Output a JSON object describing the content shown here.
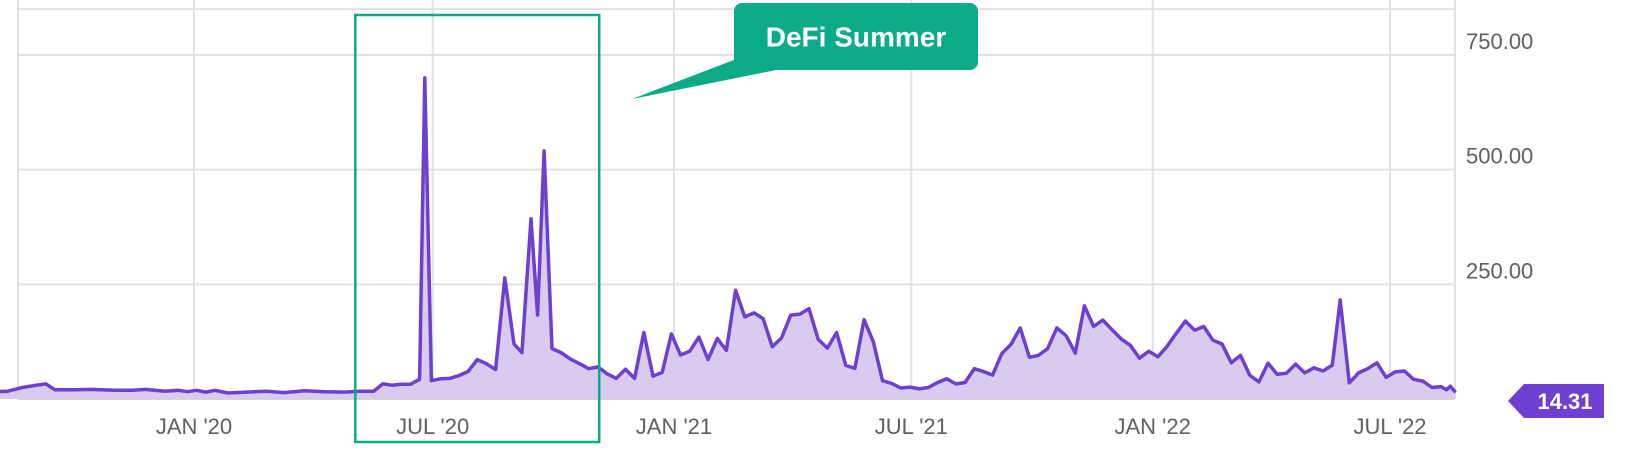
{
  "chart_data": {
    "type": "area",
    "annotation": "DeFi Summer",
    "last_value": "14.31",
    "x_tick_labels": [
      "JAN '20",
      "JUL '20",
      "JAN '21",
      "JUL '21",
      "JAN '22",
      "JUL '22"
    ],
    "y_tick_labels": [
      "250.00",
      "500.00",
      "750.00"
    ],
    "x_range": [
      "2019-08-01",
      "2022-08-20"
    ],
    "ylim": [
      0,
      850
    ],
    "highlight_range": [
      "2020-05-03",
      "2020-11-05"
    ],
    "colors": {
      "line": "#6f3fcf",
      "fill": "#d9cbef",
      "callout": "#0bab8a",
      "last_value_tag": "#6f3fcf"
    },
    "series": [
      {
        "points": [
          [
            "2019-08-01",
            16
          ],
          [
            "2019-08-12",
            17
          ],
          [
            "2019-08-23",
            25
          ],
          [
            "2019-09-03",
            30
          ],
          [
            "2019-09-10",
            33
          ],
          [
            "2019-09-17",
            20
          ],
          [
            "2019-10-01",
            20
          ],
          [
            "2019-10-15",
            21
          ],
          [
            "2019-11-01",
            19
          ],
          [
            "2019-11-15",
            19
          ],
          [
            "2019-11-25",
            21
          ],
          [
            "2019-12-10",
            17
          ],
          [
            "2019-12-20",
            19
          ],
          [
            "2019-12-27",
            16
          ],
          [
            "2020-01-03",
            19
          ],
          [
            "2020-01-10",
            15
          ],
          [
            "2020-01-17",
            19
          ],
          [
            "2020-01-27",
            13
          ],
          [
            "2020-02-10",
            15
          ],
          [
            "2020-02-25",
            17
          ],
          [
            "2020-03-10",
            14
          ],
          [
            "2020-03-25",
            18
          ],
          [
            "2020-04-10",
            16
          ],
          [
            "2020-04-25",
            15
          ],
          [
            "2020-05-07",
            17
          ],
          [
            "2020-05-17",
            17
          ],
          [
            "2020-05-24",
            33
          ],
          [
            "2020-05-31",
            30
          ],
          [
            "2020-06-07",
            32
          ],
          [
            "2020-06-14",
            32
          ],
          [
            "2020-06-21",
            43
          ],
          [
            "2020-06-25",
            700
          ],
          [
            "2020-06-30",
            40
          ],
          [
            "2020-07-07",
            44
          ],
          [
            "2020-07-14",
            45
          ],
          [
            "2020-07-21",
            51
          ],
          [
            "2020-07-28",
            60
          ],
          [
            "2020-08-04",
            86
          ],
          [
            "2020-08-11",
            77
          ],
          [
            "2020-08-18",
            64
          ],
          [
            "2020-08-25",
            264
          ],
          [
            "2020-09-01",
            120
          ],
          [
            "2020-09-07",
            101
          ],
          [
            "2020-09-14",
            393
          ],
          [
            "2020-09-19",
            183
          ],
          [
            "2020-09-24",
            541
          ],
          [
            "2020-09-30",
            110
          ],
          [
            "2020-10-07",
            101
          ],
          [
            "2020-10-14",
            87
          ],
          [
            "2020-10-21",
            77
          ],
          [
            "2020-10-28",
            66
          ],
          [
            "2020-11-04",
            70
          ],
          [
            "2020-11-11",
            55
          ],
          [
            "2020-11-18",
            45
          ],
          [
            "2020-11-25",
            65
          ],
          [
            "2020-12-02",
            45
          ],
          [
            "2020-12-09",
            145
          ],
          [
            "2020-12-16",
            50
          ],
          [
            "2020-12-23",
            58
          ],
          [
            "2020-12-30",
            142
          ],
          [
            "2021-01-06",
            96
          ],
          [
            "2021-01-13",
            104
          ],
          [
            "2021-01-20",
            135
          ],
          [
            "2021-01-27",
            86
          ],
          [
            "2021-02-03",
            132
          ],
          [
            "2021-02-10",
            106
          ],
          [
            "2021-02-17",
            237
          ],
          [
            "2021-02-24",
            179
          ],
          [
            "2021-03-03",
            188
          ],
          [
            "2021-03-10",
            175
          ],
          [
            "2021-03-17",
            114
          ],
          [
            "2021-03-24",
            133
          ],
          [
            "2021-03-31",
            183
          ],
          [
            "2021-04-07",
            185
          ],
          [
            "2021-04-14",
            197
          ],
          [
            "2021-04-21",
            130
          ],
          [
            "2021-04-28",
            111
          ],
          [
            "2021-05-05",
            145
          ],
          [
            "2021-05-12",
            73
          ],
          [
            "2021-05-19",
            67
          ],
          [
            "2021-05-26",
            173
          ],
          [
            "2021-06-02",
            125
          ],
          [
            "2021-06-09",
            40
          ],
          [
            "2021-06-16",
            34
          ],
          [
            "2021-06-23",
            24
          ],
          [
            "2021-06-30",
            26
          ],
          [
            "2021-07-07",
            22
          ],
          [
            "2021-07-14",
            25
          ],
          [
            "2021-07-21",
            36
          ],
          [
            "2021-07-28",
            44
          ],
          [
            "2021-08-04",
            33
          ],
          [
            "2021-08-11",
            36
          ],
          [
            "2021-08-18",
            66
          ],
          [
            "2021-08-25",
            60
          ],
          [
            "2021-09-01",
            52
          ],
          [
            "2021-09-08",
            99
          ],
          [
            "2021-09-15",
            119
          ],
          [
            "2021-09-22",
            155
          ],
          [
            "2021-09-29",
            91
          ],
          [
            "2021-10-06",
            95
          ],
          [
            "2021-10-13",
            110
          ],
          [
            "2021-10-20",
            155
          ],
          [
            "2021-10-27",
            138
          ],
          [
            "2021-11-03",
            100
          ],
          [
            "2021-11-10",
            203
          ],
          [
            "2021-11-17",
            158
          ],
          [
            "2021-11-24",
            172
          ],
          [
            "2021-12-01",
            151
          ],
          [
            "2021-12-08",
            131
          ],
          [
            "2021-12-15",
            117
          ],
          [
            "2021-12-22",
            89
          ],
          [
            "2021-12-29",
            104
          ],
          [
            "2022-01-05",
            92
          ],
          [
            "2022-01-12",
            115
          ],
          [
            "2022-01-19",
            143
          ],
          [
            "2022-01-26",
            170
          ],
          [
            "2022-02-02",
            150
          ],
          [
            "2022-02-09",
            158
          ],
          [
            "2022-02-16",
            128
          ],
          [
            "2022-02-23",
            120
          ],
          [
            "2022-03-02",
            79
          ],
          [
            "2022-03-09",
            95
          ],
          [
            "2022-03-16",
            52
          ],
          [
            "2022-03-23",
            37
          ],
          [
            "2022-03-30",
            78
          ],
          [
            "2022-04-06",
            54
          ],
          [
            "2022-04-13",
            56
          ],
          [
            "2022-04-20",
            76
          ],
          [
            "2022-04-27",
            57
          ],
          [
            "2022-05-04",
            68
          ],
          [
            "2022-05-11",
            61
          ],
          [
            "2022-05-18",
            74
          ],
          [
            "2022-05-24",
            216
          ],
          [
            "2022-05-31",
            35
          ],
          [
            "2022-06-07",
            57
          ],
          [
            "2022-06-14",
            66
          ],
          [
            "2022-06-21",
            79
          ],
          [
            "2022-06-28",
            47
          ],
          [
            "2022-07-05",
            59
          ],
          [
            "2022-07-12",
            61
          ],
          [
            "2022-07-19",
            43
          ],
          [
            "2022-07-26",
            39
          ],
          [
            "2022-08-02",
            25
          ],
          [
            "2022-08-09",
            27
          ],
          [
            "2022-08-13",
            20
          ],
          [
            "2022-08-16",
            28
          ],
          [
            "2022-08-20",
            14.31
          ]
        ]
      }
    ]
  }
}
